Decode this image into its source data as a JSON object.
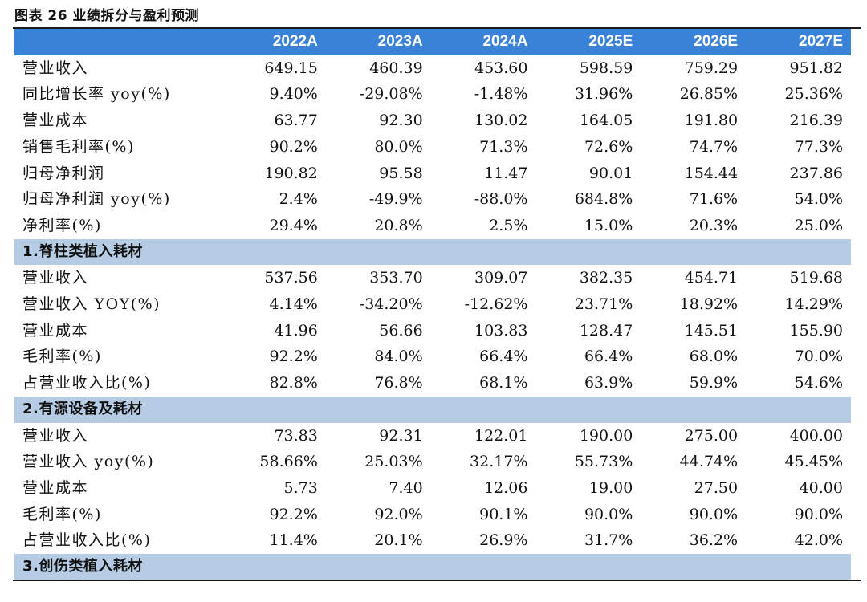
{
  "figure_title": "图表 26 业绩拆分与盈利预测",
  "table": {
    "header": [
      "",
      "2022A",
      "2023A",
      "2024A",
      "2025E",
      "2026E",
      "2027E"
    ],
    "blocks": [
      {
        "section": null,
        "rows": [
          {
            "label": "营业收入",
            "values": [
              "649.15",
              "460.39",
              "453.60",
              "598.59",
              "759.29",
              "951.82"
            ]
          },
          {
            "label": "同比增长率 yoy(%)",
            "values": [
              "9.40%",
              "-29.08%",
              "-1.48%",
              "31.96%",
              "26.85%",
              "25.36%"
            ]
          },
          {
            "label": "营业成本",
            "values": [
              "63.77",
              "92.30",
              "130.02",
              "164.05",
              "191.80",
              "216.39"
            ]
          },
          {
            "label": "销售毛利率(%)",
            "values": [
              "90.2%",
              "80.0%",
              "71.3%",
              "72.6%",
              "74.7%",
              "77.3%"
            ]
          },
          {
            "label": "归母净利润",
            "values": [
              "190.82",
              "95.58",
              "11.47",
              "90.01",
              "154.44",
              "237.86"
            ]
          },
          {
            "label": "归母净利润 yoy(%)",
            "values": [
              "2.4%",
              "-49.9%",
              "-88.0%",
              "684.8%",
              "71.6%",
              "54.0%"
            ]
          },
          {
            "label": "净利率(%)",
            "values": [
              "29.4%",
              "20.8%",
              "2.5%",
              "15.0%",
              "20.3%",
              "25.0%"
            ]
          }
        ]
      },
      {
        "section": "1.脊柱类植入耗材",
        "rows": [
          {
            "label": "营业收入",
            "values": [
              "537.56",
              "353.70",
              "309.07",
              "382.35",
              "454.71",
              "519.68"
            ]
          },
          {
            "label": "营业收入 YOY(%)",
            "values": [
              "4.14%",
              "-34.20%",
              "-12.62%",
              "23.71%",
              "18.92%",
              "14.29%"
            ]
          },
          {
            "label": "营业成本",
            "values": [
              "41.96",
              "56.66",
              "103.83",
              "128.47",
              "145.51",
              "155.90"
            ]
          },
          {
            "label": "毛利率(%)",
            "values": [
              "92.2%",
              "84.0%",
              "66.4%",
              "66.4%",
              "68.0%",
              "70.0%"
            ]
          },
          {
            "label": "占营业收入比(%)",
            "values": [
              "82.8%",
              "76.8%",
              "68.1%",
              "63.9%",
              "59.9%",
              "54.6%"
            ]
          }
        ]
      },
      {
        "section": "2.有源设备及耗材",
        "rows": [
          {
            "label": "营业收入",
            "values": [
              "73.83",
              "92.31",
              "122.01",
              "190.00",
              "275.00",
              "400.00"
            ]
          },
          {
            "label": "营业收入 yoy(%)",
            "values": [
              "58.66%",
              "25.03%",
              "32.17%",
              "55.73%",
              "44.74%",
              "45.45%"
            ]
          },
          {
            "label": "营业成本",
            "values": [
              "5.73",
              "7.40",
              "12.06",
              "19.00",
              "27.50",
              "40.00"
            ]
          },
          {
            "label": "毛利率(%)",
            "values": [
              "92.2%",
              "92.0%",
              "90.1%",
              "90.0%",
              "90.0%",
              "90.0%"
            ]
          },
          {
            "label": "占营业收入比(%)",
            "values": [
              "11.4%",
              "20.1%",
              "26.9%",
              "31.7%",
              "36.2%",
              "42.0%"
            ]
          }
        ]
      },
      {
        "section": "3.创伤类植入耗材",
        "rows": []
      }
    ]
  },
  "colors": {
    "header_bg": "#3a82d8",
    "section_bg": "#b6cce5"
  }
}
